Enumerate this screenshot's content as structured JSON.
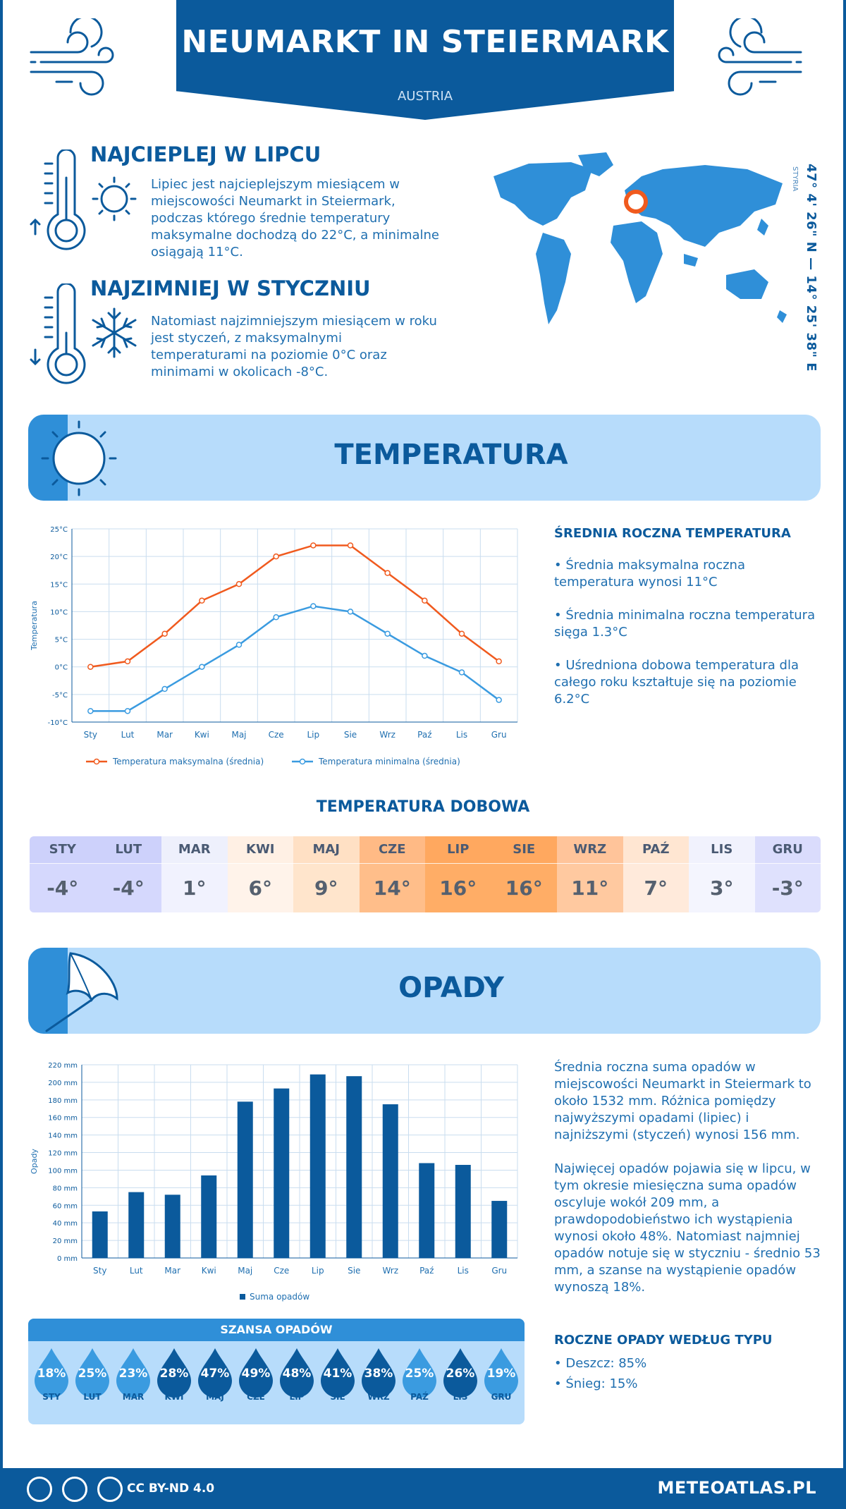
{
  "header": {
    "title": "NEUMARKT IN STEIERMARK",
    "country": "AUSTRIA"
  },
  "hot": {
    "title": "NAJCIEPLEJ W LIPCU",
    "text": "Lipiec jest najcieplejszym miesiącem w miejscowości Neumarkt in Steiermark, podczas którego średnie temperatury maksymalne dochodzą do 22°C, a minimalne osiągają 11°C."
  },
  "cold": {
    "title": "NAJZIMNIEJ W STYCZNIU",
    "text": "Natomiast najzimniejszym miesiącem w roku jest styczeń, z maksymalnymi temperaturami na poziomie 0°C oraz minimami w okolicach -8°C."
  },
  "location": {
    "coords": "47° 4' 26\" N — 14° 25' 38\" E",
    "region": "STYRIA"
  },
  "temperature_section": {
    "title": "TEMPERATURA",
    "side_title": "ŚREDNIA ROCZNA TEMPERATURA",
    "bullets": [
      "• Średnia maksymalna roczna temperatura wynosi 11°C",
      "• Średnia minimalna roczna temperatura sięga 1.3°C",
      "• Uśredniona dobowa temperatura dla całego roku kształtuje się na poziomie 6.2°C"
    ]
  },
  "daily": {
    "title": "TEMPERATURA DOBOWA",
    "months": [
      "STY",
      "LUT",
      "MAR",
      "KWI",
      "MAJ",
      "CZE",
      "LIP",
      "SIE",
      "WRZ",
      "PAŹ",
      "LIS",
      "GRU"
    ],
    "values": [
      "-4°",
      "-4°",
      "1°",
      "6°",
      "9°",
      "14°",
      "16°",
      "16°",
      "11°",
      "7°",
      "3°",
      "-3°"
    ],
    "head_colors": [
      "#cdd1fb",
      "#cdd1fb",
      "#eef0fc",
      "#fff0e4",
      "#ffe0c4",
      "#ffba85",
      "#ffa85f",
      "#ffa85f",
      "#ffc49a",
      "#ffe6d2",
      "#f1f2fd",
      "#dadcfc"
    ],
    "value_colors": [
      "#d5d8fd",
      "#d5d8fd",
      "#f1f2fe",
      "#fff3ea",
      "#ffe5cc",
      "#ffbe8a",
      "#ffad66",
      "#ffad66",
      "#ffc9a0",
      "#ffeadb",
      "#f4f5fe",
      "#dfe1fd"
    ]
  },
  "precip_section": {
    "title": "OPADY",
    "text1": "Średnia roczna suma opadów w miejscowości Neumarkt in Steiermark to około 1532 mm. Różnica pomiędzy najwyższymi opadami (lipiec) i najniższymi (styczeń) wynosi 156 mm.",
    "text2": "Najwięcej opadów pojawia się w lipcu, w tym okresie miesięczna suma opadów oscyluje wokół 209 mm, a prawdopodobieństwo ich wystąpienia wynosi około 48%. Natomiast najmniej opadów notuje się w styczniu - średnio 53 mm, a szanse na wystąpienie opadów wynoszą 18%.",
    "type_title": "ROCZNE OPADY WEDŁUG TYPU",
    "types": [
      "• Deszcz: 85%",
      "• Śnieg: 15%"
    ]
  },
  "chance": {
    "title": "SZANSA OPADÓW",
    "months": [
      "STY",
      "LUT",
      "MAR",
      "KWI",
      "MAJ",
      "CZE",
      "LIP",
      "SIE",
      "WRZ",
      "PAŹ",
      "LIS",
      "GRU"
    ],
    "values": [
      "18%",
      "25%",
      "23%",
      "28%",
      "47%",
      "49%",
      "48%",
      "41%",
      "38%",
      "25%",
      "26%",
      "19%"
    ],
    "colors": [
      "#3a9be0",
      "#3a9be0",
      "#3a9be0",
      "#0b5a9c",
      "#0b5a9c",
      "#0b5a9c",
      "#0b5a9c",
      "#0b5a9c",
      "#0b5a9c",
      "#3a9be0",
      "#0b5a9c",
      "#3a9be0"
    ]
  },
  "footer": {
    "license": "CC BY-ND 4.0",
    "brand": "METEOATLAS.PL"
  },
  "colors": {
    "primary": "#0b5a9c",
    "light": "#b7dcfb",
    "accent": "#2f8fd8",
    "max_line": "#f05a1e",
    "min_line": "#3a9be0"
  },
  "chart_data": [
    {
      "type": "line",
      "categories": [
        "Sty",
        "Lut",
        "Mar",
        "Kwi",
        "Maj",
        "Cze",
        "Lip",
        "Sie",
        "Wrz",
        "Paź",
        "Lis",
        "Gru"
      ],
      "series": [
        {
          "name": "Temperatura maksymalna (średnia)",
          "values": [
            0,
            1,
            6,
            12,
            15,
            20,
            22,
            22,
            17,
            12,
            6,
            1
          ]
        },
        {
          "name": "Temperatura minimalna (średnia)",
          "values": [
            -8,
            -8,
            -4,
            0,
            4,
            9,
            11,
            10,
            6,
            2,
            -1,
            -6
          ]
        }
      ],
      "ylabel": "Temperatura",
      "ylim": [
        -10,
        25
      ],
      "yticks": [
        "-10°C",
        "-5°C",
        "0°C",
        "5°C",
        "10°C",
        "15°C",
        "20°C",
        "25°C"
      ],
      "grid": true,
      "legend": "bottom"
    },
    {
      "type": "bar",
      "categories": [
        "Sty",
        "Lut",
        "Mar",
        "Kwi",
        "Maj",
        "Cze",
        "Lip",
        "Sie",
        "Wrz",
        "Paź",
        "Lis",
        "Gru"
      ],
      "series": [
        {
          "name": "Suma opadów",
          "values": [
            53,
            75,
            72,
            94,
            178,
            193,
            209,
            207,
            175,
            108,
            106,
            65
          ]
        }
      ],
      "ylabel": "Opady",
      "ylim": [
        0,
        220
      ],
      "yticks": [
        "0 mm",
        "20 mm",
        "40 mm",
        "60 mm",
        "80 mm",
        "100 mm",
        "120 mm",
        "140 mm",
        "160 mm",
        "180 mm",
        "200 mm",
        "220 mm"
      ],
      "grid": true,
      "legend": "bottom"
    }
  ]
}
